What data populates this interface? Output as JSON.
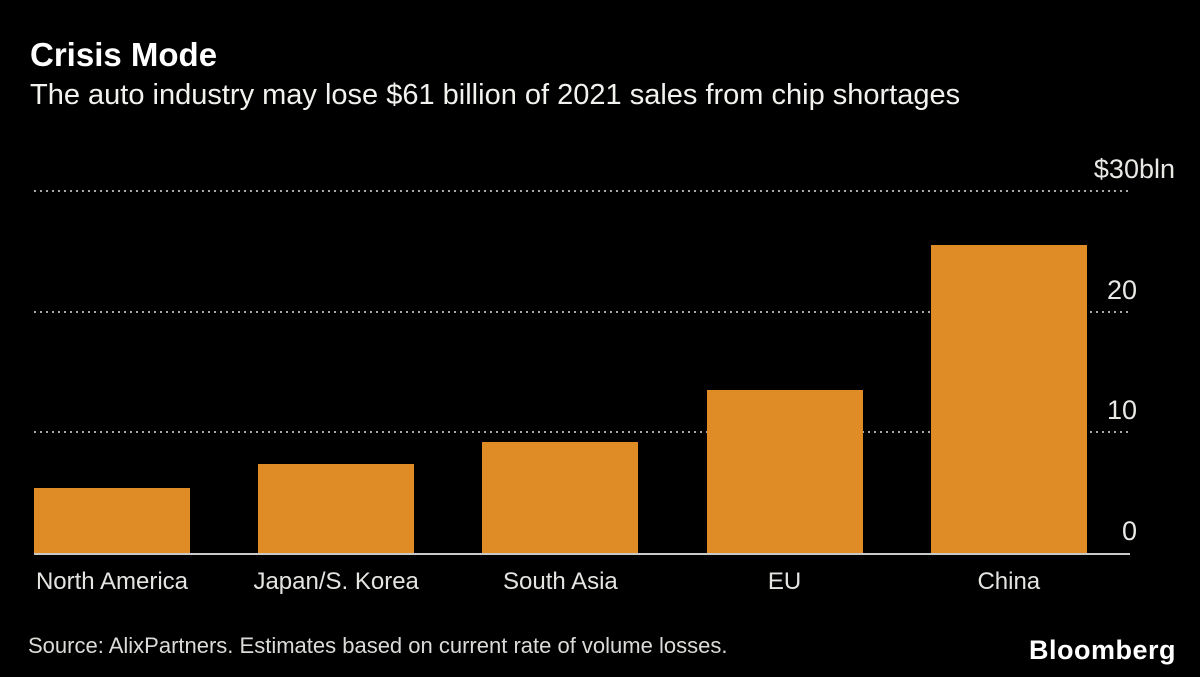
{
  "header": {
    "title": "Crisis Mode",
    "subtitle": "The auto industry may lose $61 billion of 2021 sales from chip shortages"
  },
  "chart_data": {
    "type": "bar",
    "categories": [
      "North America",
      "Japan/S. Korea",
      "South Asia",
      "EU",
      "China"
    ],
    "values": [
      5.4,
      7.4,
      9.2,
      13.5,
      25.5
    ],
    "unit": "$ billion",
    "title": "Crisis Mode",
    "subtitle": "The auto industry may lose $61 billion of 2021 sales from chip shortages",
    "xlabel": "",
    "ylabel": "$bln",
    "ylim": [
      0,
      30
    ],
    "yticks": [
      0,
      10,
      20,
      30
    ],
    "ytick_labels": [
      "0",
      "10",
      "20",
      "$30bln"
    ],
    "ytick_side": "right",
    "grid": "horizontal-dotted",
    "legend": "none",
    "bar_color": "#E08C26",
    "gridline_color": "#A8A8A5",
    "axis_line_color": "#C9C9C7",
    "background_color": "#000000"
  },
  "footer": {
    "source": "Source: AlixPartners. Estimates based on current rate of volume losses.",
    "brand": "Bloomberg"
  },
  "colors": {
    "background": "#000000",
    "bar": "#E08C26",
    "title_text": "#FFFFFF",
    "body_text": "#F2F2EF",
    "tick_text": "#E8E8E5",
    "gridline": "#A8A8A5",
    "axis_line": "#C9C9C7"
  }
}
